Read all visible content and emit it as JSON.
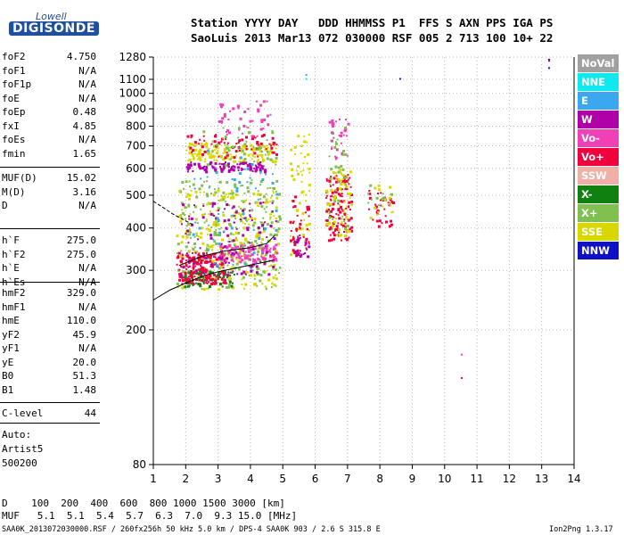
{
  "logo": {
    "top_text": "Lowell",
    "brand": "DIGISONDE"
  },
  "header": {
    "line1": "Station YYYY DAY   DDD HHMMSS P1  FFS S AXN PPS IGA PS",
    "line2": "SaoLuis 2013 Mar13 072 030000 RSF 005 2 713 100 10+ 22"
  },
  "params": {
    "group1": [
      {
        "name": "foF2",
        "value": "4.750"
      },
      {
        "name": "foF1",
        "value": "N/A"
      },
      {
        "name": "foF1p",
        "value": "N/A"
      },
      {
        "name": "foE",
        "value": "N/A"
      },
      {
        "name": "foEp",
        "value": "0.48"
      },
      {
        "name": "fxI",
        "value": "4.85"
      },
      {
        "name": "foEs",
        "value": "N/A"
      },
      {
        "name": "fmin",
        "value": "1.65"
      }
    ],
    "group2": [
      {
        "name": "MUF(D)",
        "value": "15.02"
      },
      {
        "name": "M(D)",
        "value": "3.16"
      },
      {
        "name": "D",
        "value": "N/A"
      }
    ],
    "group3": [
      {
        "name": "h`F",
        "value": "275.0"
      },
      {
        "name": "h`F2",
        "value": "275.0"
      },
      {
        "name": "h`E",
        "value": "N/A"
      },
      {
        "name": "h`Es",
        "value": "N/A"
      }
    ],
    "group4": [
      {
        "name": "hmF2",
        "value": "329.0"
      },
      {
        "name": "hmF1",
        "value": "N/A"
      },
      {
        "name": "hmE",
        "value": "110.0"
      },
      {
        "name": "yF2",
        "value": "45.9"
      },
      {
        "name": "yF1",
        "value": "N/A"
      },
      {
        "name": "yE",
        "value": "20.0"
      },
      {
        "name": "B0",
        "value": "51.3"
      },
      {
        "name": "B1",
        "value": "1.48"
      }
    ],
    "group5": [
      {
        "name": "C-level",
        "value": "44"
      }
    ],
    "autoscale": [
      "Auto:",
      "Artist5",
      "500200"
    ]
  },
  "legend": [
    {
      "label": "NoVal",
      "color": "#a0a0a0"
    },
    {
      "label": "NNE",
      "color": "#10e8f0"
    },
    {
      "label": "E",
      "color": "#3aa8f0"
    },
    {
      "label": "W",
      "color": "#b000a8"
    },
    {
      "label": "Vo-",
      "color": "#f040b8"
    },
    {
      "label": "Vo+",
      "color": "#f0003c"
    },
    {
      "label": "SSW",
      "color": "#f0b0a8"
    },
    {
      "label": "X-",
      "color": "#108010"
    },
    {
      "label": "X+",
      "color": "#80c050"
    },
    {
      "label": "SSE",
      "color": "#d8d800"
    },
    {
      "label": "NNW",
      "color": "#1010c8"
    }
  ],
  "footer": {
    "d_line": "D    100  200  400  600  800 1000 1500 3000 [km]",
    "muf_line": "MUF   5.1  5.1  5.4  5.7  6.3  7.0  9.3 15.0 [MHz]",
    "file_line": "SAA0K_2013072030000.RSF / 260fx256h 50 kHz 5.0 km / DPS-4 SAA0K 903 / 2.6 S 315.8 E",
    "version": "Ion2Png 1.3.17"
  },
  "chart_data": {
    "type": "scatter",
    "title": "",
    "xlabel": "",
    "ylabel": "",
    "xlim": [
      1,
      14
    ],
    "ylim": [
      80,
      1280
    ],
    "y_scale": "log",
    "x_ticks": [
      "1",
      "2",
      "3",
      "4",
      "5",
      "6",
      "7",
      "8",
      "9",
      "10",
      "11",
      "12",
      "13",
      "14"
    ],
    "y_ticks": [
      "80",
      "200",
      "300",
      "400",
      "500",
      "600",
      "700",
      "800",
      "900",
      "1000",
      "1100",
      "1280"
    ],
    "grid": true,
    "legend_position": "right",
    "traces": [
      {
        "name": "",
        "points": [
          [
            1.0,
            245
          ],
          [
            1.5,
            262
          ],
          [
            2.0,
            275
          ],
          [
            2.5,
            288
          ],
          [
            3.0,
            297
          ],
          [
            3.5,
            304
          ],
          [
            4.0,
            311
          ],
          [
            4.5,
            318
          ],
          [
            4.75,
            322
          ]
        ]
      },
      {
        "name": "",
        "points": [
          [
            1.8,
            310
          ],
          [
            2.5,
            330
          ],
          [
            3.2,
            342
          ],
          [
            4.0,
            350
          ],
          [
            4.5,
            360
          ],
          [
            4.75,
            380
          ]
        ]
      },
      {
        "name": "",
        "points": [
          [
            1.0,
            480
          ],
          [
            1.3,
            460
          ],
          [
            1.6,
            440
          ],
          [
            1.9,
            425
          ],
          [
            2.2,
            410
          ]
        ]
      }
    ],
    "clusters": [
      {
        "x": [
          1.7,
          4.9
        ],
        "y": [
          265,
          560
        ],
        "series": "X+",
        "weight": 300
      },
      {
        "x": [
          1.7,
          4.9
        ],
        "y": [
          265,
          520
        ],
        "series": "SSE",
        "weight": 240
      },
      {
        "x": [
          1.7,
          3.2
        ],
        "y": [
          275,
          340
        ],
        "series": "Vo+",
        "weight": 220
      },
      {
        "x": [
          3.0,
          4.8
        ],
        "y": [
          320,
          360
        ],
        "series": "Vo-",
        "weight": 120
      },
      {
        "x": [
          1.8,
          4.8
        ],
        "y": [
          290,
          480
        ],
        "series": "W",
        "weight": 120
      },
      {
        "x": [
          2.0,
          4.8
        ],
        "y": [
          630,
          720
        ],
        "series": "SSE",
        "weight": 160
      },
      {
        "x": [
          2.0,
          4.5
        ],
        "y": [
          590,
          630
        ],
        "series": "W",
        "weight": 110
      },
      {
        "x": [
          2.0,
          4.8
        ],
        "y": [
          650,
          760
        ],
        "series": "Vo+",
        "weight": 70
      },
      {
        "x": [
          2.2,
          4.8
        ],
        "y": [
          300,
          700
        ],
        "series": "E",
        "weight": 60
      },
      {
        "x": [
          1.9,
          3.5
        ],
        "y": [
          270,
          300
        ],
        "series": "X-",
        "weight": 50
      },
      {
        "x": [
          3.0,
          4.6
        ],
        "y": [
          750,
          960
        ],
        "series": "Vo-",
        "weight": 45
      },
      {
        "x": [
          2.5,
          4.8
        ],
        "y": [
          600,
          800
        ],
        "series": "X+",
        "weight": 40
      },
      {
        "x": [
          5.2,
          5.8
        ],
        "y": [
          330,
          760
        ],
        "series": "SSE",
        "weight": 60
      },
      {
        "x": [
          5.2,
          5.8
        ],
        "y": [
          330,
          500
        ],
        "series": "Vo+",
        "weight": 40
      },
      {
        "x": [
          5.3,
          5.8
        ],
        "y": [
          330,
          380
        ],
        "series": "W",
        "weight": 25
      },
      {
        "x": [
          6.3,
          7.1
        ],
        "y": [
          370,
          580
        ],
        "series": "Vo+",
        "weight": 130
      },
      {
        "x": [
          6.3,
          7.1
        ],
        "y": [
          380,
          600
        ],
        "series": "SSE",
        "weight": 60
      },
      {
        "x": [
          6.4,
          7.0
        ],
        "y": [
          400,
          800
        ],
        "series": "X+",
        "weight": 40
      },
      {
        "x": [
          6.4,
          7.0
        ],
        "y": [
          650,
          850
        ],
        "series": "Vo-",
        "weight": 30
      },
      {
        "x": [
          7.6,
          8.4
        ],
        "y": [
          400,
          520
        ],
        "series": "Vo+",
        "weight": 35
      },
      {
        "x": [
          7.6,
          8.4
        ],
        "y": [
          430,
          540
        ],
        "series": "SSE",
        "weight": 15
      },
      {
        "x": [
          7.6,
          8.4
        ],
        "y": [
          450,
          540
        ],
        "series": "X+",
        "weight": 12
      }
    ],
    "isolated_points": [
      {
        "x": 13.2,
        "y": 1265,
        "series": "NNW"
      },
      {
        "x": 13.2,
        "y": 1255,
        "series": "W"
      },
      {
        "x": 13.2,
        "y": 1195,
        "series": "NNW"
      },
      {
        "x": 8.6,
        "y": 1110,
        "series": "NNW"
      },
      {
        "x": 5.7,
        "y": 1140,
        "series": "E"
      },
      {
        "x": 5.7,
        "y": 1110,
        "series": "NNE"
      },
      {
        "x": 10.5,
        "y": 170,
        "series": "Vo-"
      },
      {
        "x": 10.5,
        "y": 145,
        "series": "Vo+"
      }
    ]
  }
}
